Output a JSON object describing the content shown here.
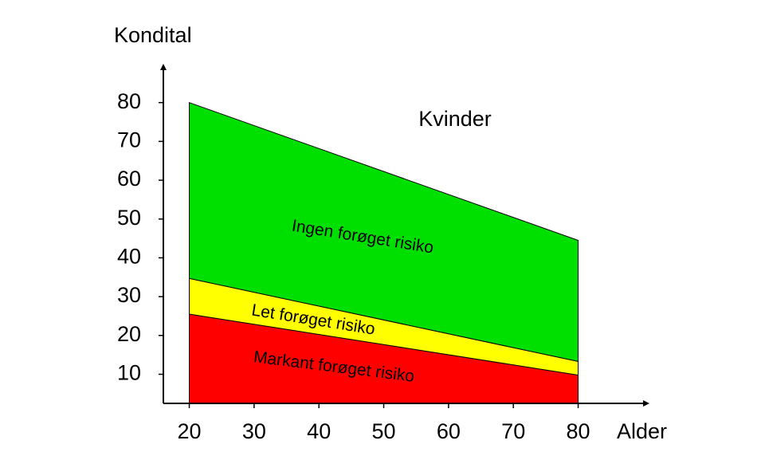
{
  "chart_data": {
    "type": "stacked_area",
    "title": "Kvinder",
    "x_label": "Alder",
    "y_label": "Kondital",
    "x": [
      20,
      80
    ],
    "series": [
      {
        "name": "Markant forøget risiko",
        "color": "#ff0000",
        "values": [
          25.5,
          9.8
        ]
      },
      {
        "name": "Let forøget risiko",
        "color": "#ffff00",
        "values": [
          9.2,
          3.5
        ]
      },
      {
        "name": "Ingen forøget risiko",
        "color": "#00e000",
        "values": [
          45.3,
          31.2
        ]
      }
    ],
    "xlim": [
      16,
      91
    ],
    "ylim": [
      2.5,
      90
    ],
    "xticks": [
      20,
      30,
      40,
      50,
      60,
      70,
      80
    ],
    "yticks": [
      10,
      20,
      30,
      40,
      50,
      60,
      70,
      80
    ]
  }
}
